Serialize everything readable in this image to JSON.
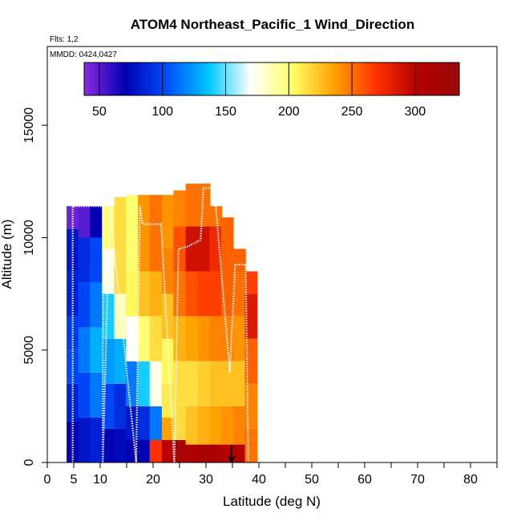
{
  "chart_data": {
    "type": "heatmap",
    "title": "ATOM4 Northeast_Pacific_1 Wind_Direction",
    "subtitle_flights": "Flts: 1,2",
    "subtitle_dates": "MMDD: 0424,0427",
    "xlabel": "Latitude (deg N)",
    "ylabel": "Altitude (m)",
    "xlim": [
      0,
      85
    ],
    "ylim": [
      0,
      18500
    ],
    "x_ticks": [
      0,
      5,
      10,
      20,
      30,
      40,
      50,
      60,
      70,
      80
    ],
    "x_minor_ticks": [
      15,
      25,
      35,
      45,
      55,
      65,
      75,
      85
    ],
    "y_ticks": [
      0,
      5000,
      10000,
      15000
    ],
    "colorbar": {
      "range": [
        38,
        335
      ],
      "ticks": [
        50,
        100,
        150,
        200,
        250,
        300
      ],
      "colors": [
        "#8b2be2",
        "#0000b4",
        "#0050ff",
        "#00c8ff",
        "#ffffff",
        "#ffff64",
        "#ffa000",
        "#ff3200",
        "#b40000",
        "#960a0a"
      ]
    },
    "columns": [
      {
        "lat": 4.8,
        "top": 11400,
        "segments": [
          [
            0,
            1800,
            70
          ],
          [
            1800,
            3500,
            85
          ],
          [
            3500,
            5000,
            100
          ],
          [
            5000,
            6500,
            95
          ],
          [
            6500,
            8500,
            85
          ],
          [
            8500,
            10400,
            80
          ],
          [
            10400,
            11400,
            45
          ]
        ]
      },
      {
        "lat": 7.0,
        "top": 11400,
        "segments": [
          [
            0,
            2000,
            80
          ],
          [
            2000,
            4000,
            100
          ],
          [
            4000,
            6000,
            115
          ],
          [
            6000,
            8000,
            100
          ],
          [
            8000,
            10000,
            90
          ],
          [
            10000,
            11400,
            50
          ]
        ]
      },
      {
        "lat": 9.2,
        "top": 11400,
        "segments": [
          [
            0,
            2000,
            85
          ],
          [
            2000,
            4000,
            115
          ],
          [
            4000,
            6000,
            130
          ],
          [
            6000,
            8000,
            115
          ],
          [
            8000,
            10000,
            100
          ],
          [
            10000,
            11400,
            70
          ]
        ]
      },
      {
        "lat": 11.5,
        "top": 11400,
        "segments": [
          [
            0,
            1500,
            70
          ],
          [
            1500,
            3500,
            100
          ],
          [
            3500,
            5500,
            125
          ],
          [
            5500,
            7500,
            140
          ],
          [
            7500,
            9500,
            175
          ],
          [
            9500,
            11400,
            200
          ]
        ]
      },
      {
        "lat": 13.8,
        "top": 11800,
        "segments": [
          [
            0,
            1500,
            75
          ],
          [
            1500,
            3500,
            90
          ],
          [
            3500,
            5500,
            130
          ],
          [
            5500,
            7500,
            185
          ],
          [
            7500,
            9500,
            215
          ],
          [
            9500,
            11800,
            215
          ]
        ]
      },
      {
        "lat": 16.0,
        "top": 11900,
        "segments": [
          [
            0,
            1000,
            70
          ],
          [
            1000,
            2500,
            80
          ],
          [
            2500,
            4500,
            115
          ],
          [
            4500,
            6500,
            170
          ],
          [
            6500,
            8500,
            205
          ],
          [
            8500,
            11900,
            200
          ]
        ]
      },
      {
        "lat": 18.3,
        "top": 11900,
        "segments": [
          [
            0,
            1000,
            70
          ],
          [
            1000,
            2500,
            90
          ],
          [
            2500,
            4500,
            140
          ],
          [
            4500,
            6500,
            200
          ],
          [
            6500,
            8500,
            225
          ],
          [
            8500,
            11900,
            240
          ]
        ]
      },
      {
        "lat": 20.5,
        "top": 11900,
        "segments": [
          [
            0,
            1000,
            270
          ],
          [
            1000,
            2500,
            115
          ],
          [
            2500,
            4500,
            175
          ],
          [
            4500,
            6500,
            215
          ],
          [
            6500,
            8500,
            230
          ],
          [
            8500,
            11900,
            250
          ]
        ]
      },
      {
        "lat": 22.8,
        "top": 11900,
        "segments": [
          [
            0,
            1000,
            300
          ],
          [
            1000,
            2000,
            235
          ],
          [
            2000,
            3500,
            210
          ],
          [
            3500,
            5500,
            205
          ],
          [
            5500,
            7500,
            225
          ],
          [
            7500,
            9500,
            245
          ],
          [
            9500,
            11900,
            240
          ]
        ]
      },
      {
        "lat": 25.0,
        "top": 12100,
        "segments": [
          [
            0,
            1000,
            315
          ],
          [
            1000,
            2500,
            215
          ],
          [
            2500,
            4500,
            215
          ],
          [
            4500,
            6500,
            230
          ],
          [
            6500,
            8500,
            250
          ],
          [
            8500,
            10500,
            260
          ],
          [
            10500,
            12100,
            245
          ]
        ]
      },
      {
        "lat": 27.3,
        "top": 12400,
        "segments": [
          [
            0,
            800,
            310
          ],
          [
            800,
            2500,
            225
          ],
          [
            2500,
            4500,
            215
          ],
          [
            4500,
            6500,
            235
          ],
          [
            6500,
            8500,
            260
          ],
          [
            8500,
            10500,
            290
          ],
          [
            10500,
            12400,
            250
          ]
        ]
      },
      {
        "lat": 29.6,
        "top": 12400,
        "segments": [
          [
            0,
            800,
            315
          ],
          [
            800,
            2500,
            230
          ],
          [
            2500,
            4500,
            220
          ],
          [
            4500,
            6500,
            240
          ],
          [
            6500,
            8500,
            265
          ],
          [
            8500,
            10500,
            290
          ],
          [
            10500,
            12400,
            250
          ]
        ]
      },
      {
        "lat": 31.8,
        "top": 11400,
        "segments": [
          [
            0,
            800,
            310
          ],
          [
            800,
            2500,
            235
          ],
          [
            2500,
            4500,
            225
          ],
          [
            4500,
            6500,
            245
          ],
          [
            6500,
            8500,
            265
          ],
          [
            8500,
            10500,
            275
          ],
          [
            10500,
            11400,
            250
          ]
        ]
      },
      {
        "lat": 34.0,
        "top": 10900,
        "segments": [
          [
            0,
            800,
            300
          ],
          [
            800,
            2500,
            240
          ],
          [
            2500,
            4500,
            225
          ],
          [
            4500,
            6500,
            245
          ],
          [
            6500,
            8500,
            255
          ],
          [
            8500,
            10900,
            255
          ]
        ]
      },
      {
        "lat": 36.3,
        "top": 9500,
        "segments": [
          [
            0,
            800,
            305
          ],
          [
            800,
            2500,
            245
          ],
          [
            2500,
            4500,
            225
          ],
          [
            4500,
            6500,
            240
          ],
          [
            6500,
            8500,
            250
          ],
          [
            8500,
            9500,
            255
          ]
        ]
      },
      {
        "lat": 38.5,
        "top": 8500,
        "segments": [
          [
            0,
            1500,
            250
          ],
          [
            1500,
            3500,
            245
          ],
          [
            3500,
            5500,
            255
          ],
          [
            5500,
            7500,
            285
          ],
          [
            7500,
            8500,
            265
          ]
        ]
      }
    ],
    "flight_track": [
      [
        4.8,
        0
      ],
      [
        4.8,
        11400
      ],
      [
        10.5,
        11400
      ],
      [
        10.5,
        0
      ],
      [
        11.8,
        11400
      ],
      [
        16.8,
        0
      ],
      [
        17.5,
        11400
      ],
      [
        18.0,
        10600
      ],
      [
        21.5,
        10600
      ],
      [
        24.0,
        0
      ],
      [
        24.8,
        9500
      ],
      [
        26.5,
        9600
      ],
      [
        29.0,
        9900
      ],
      [
        29.5,
        12200
      ],
      [
        31.5,
        12200
      ],
      [
        31.8,
        11500
      ],
      [
        34.5,
        4000
      ],
      [
        35.5,
        8800
      ],
      [
        37.5,
        8800
      ],
      [
        38.0,
        0
      ]
    ],
    "arrow_marker": {
      "lat": 34.8,
      "altitude": 0
    }
  }
}
